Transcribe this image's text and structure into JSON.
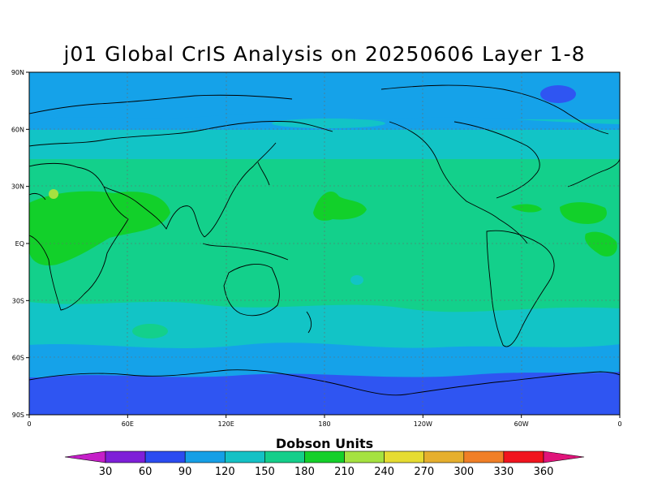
{
  "title": "j01 Global CrIS Analysis on 20250606 Layer 1-8",
  "map": {
    "lon_ticks": [
      "0",
      "60E",
      "120E",
      "180",
      "120W",
      "60W",
      "0"
    ],
    "lat_ticks": [
      "90N",
      "60N",
      "30N",
      "EQ",
      "30S",
      "60S",
      "90S"
    ]
  },
  "colorbar": {
    "title": "Dobson Units",
    "levels": [
      "30",
      "60",
      "90",
      "120",
      "150",
      "180",
      "210",
      "240",
      "270",
      "300",
      "330",
      "360"
    ],
    "colors": [
      "#c51fc8",
      "#7e1fd8",
      "#2b4cf0",
      "#159fe6",
      "#14c1c5",
      "#14ce8a",
      "#14d02a",
      "#a5e240",
      "#e6dc32",
      "#e6af2e",
      "#f07f27",
      "#f0141e",
      "#e0147a"
    ]
  },
  "colors": {
    "band_polar": "#2f55f2",
    "band_high": "#15a2e9",
    "band_mid": "#12c4c6",
    "band_main": "#13d08b",
    "band_high_value": "#12d02a",
    "band_peak": "#a5e140",
    "coast": "#000000"
  }
}
